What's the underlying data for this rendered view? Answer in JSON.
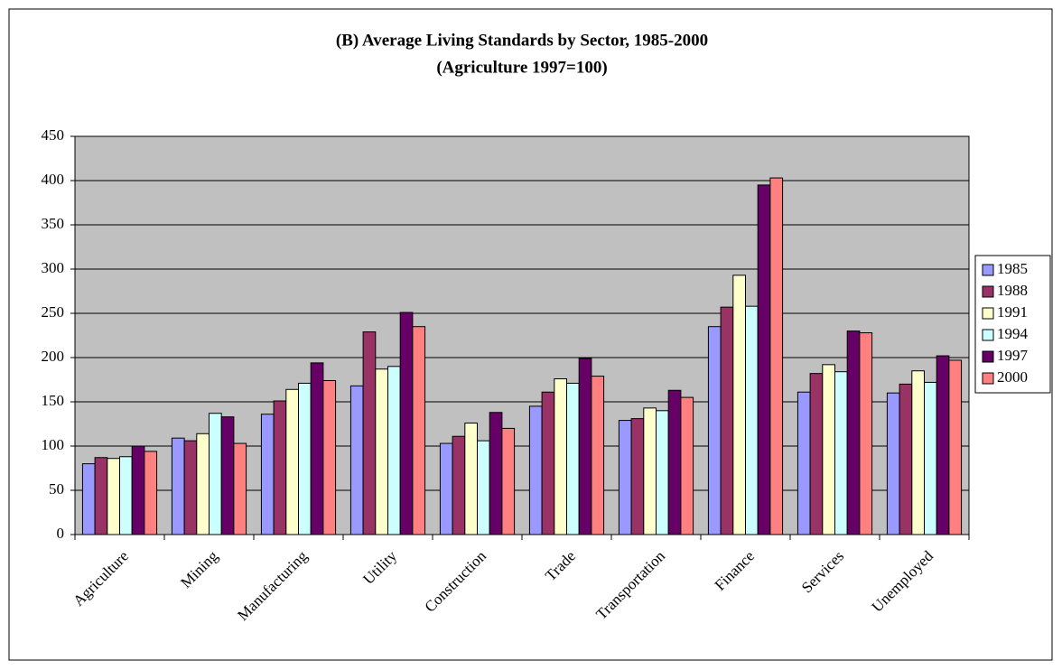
{
  "chart_data": {
    "type": "bar",
    "title": "(B) Average Living Standards by Sector, 1985-2000",
    "subtitle": "(Agriculture 1997=100)",
    "categories": [
      "Agriculture",
      "Mining",
      "Manufacturing",
      "Utility",
      "Construction",
      "Trade",
      "Transportation",
      "Finance",
      "Services",
      "Unemployed"
    ],
    "series": [
      {
        "name": "1985",
        "color": "#9999ff",
        "values": [
          80,
          109,
          136,
          168,
          103,
          145,
          129,
          235,
          161,
          160
        ]
      },
      {
        "name": "1988",
        "color": "#993366",
        "values": [
          87,
          106,
          151,
          229,
          111,
          161,
          131,
          257,
          182,
          170
        ]
      },
      {
        "name": "1991",
        "color": "#ffffcc",
        "values": [
          86,
          114,
          164,
          187,
          126,
          176,
          143,
          293,
          192,
          185
        ]
      },
      {
        "name": "1994",
        "color": "#ccffff",
        "values": [
          88,
          137,
          171,
          190,
          106,
          171,
          140,
          258,
          184,
          172
        ]
      },
      {
        "name": "1997",
        "color": "#660066",
        "values": [
          100,
          133,
          194,
          251,
          138,
          199,
          163,
          395,
          230,
          202
        ]
      },
      {
        "name": "2000",
        "color": "#ff8080",
        "values": [
          94,
          103,
          174,
          235,
          120,
          179,
          155,
          403,
          228,
          197
        ]
      }
    ],
    "ylim": [
      0,
      450
    ],
    "yticks": [
      0,
      50,
      100,
      150,
      200,
      250,
      300,
      350,
      400,
      450
    ],
    "grid": true,
    "legend": "right",
    "plot_background": "#c0c0c0"
  }
}
